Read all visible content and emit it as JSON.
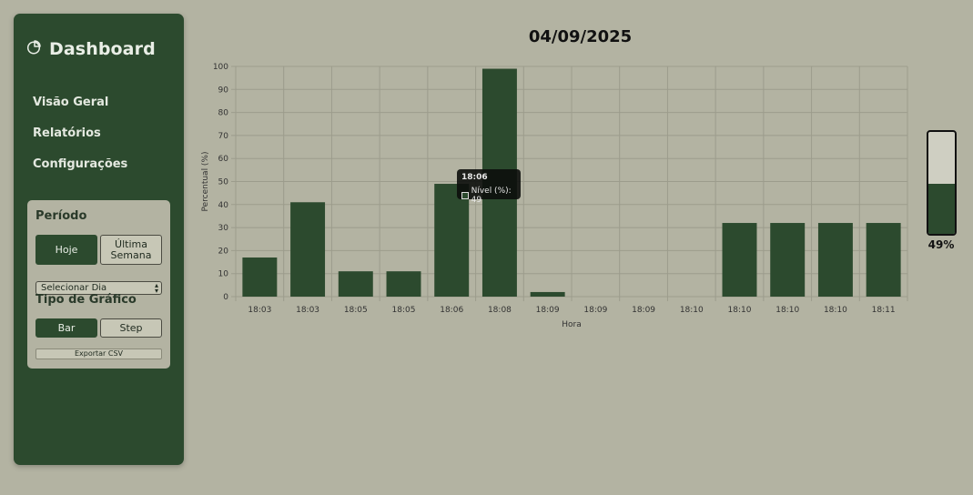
{
  "sidebar": {
    "brand": {
      "icon": "pie-chart-icon",
      "title": "Dashboard"
    },
    "nav": [
      {
        "label": "Visão Geral"
      },
      {
        "label": "Relatórios"
      },
      {
        "label": "Configurações"
      }
    ],
    "panel": {
      "period_title": "Período",
      "period_buttons": [
        {
          "label": "Hoje",
          "active": true
        },
        {
          "label": "Última Semana",
          "active": false
        }
      ],
      "day_select": {
        "value": "Selecionar Dia"
      },
      "chart_type_title": "Tipo de Gráfico",
      "chart_type_buttons": [
        {
          "label": "Bar",
          "active": true
        },
        {
          "label": "Step",
          "active": false
        }
      ],
      "export_label": "Exportar CSV"
    }
  },
  "main": {
    "date_title": "04/09/2025",
    "tooltip": {
      "title": "18:06",
      "series_label": "Nível (%): 49"
    },
    "gauge": {
      "value_pct": 49,
      "label": "49%"
    }
  },
  "colors": {
    "accent": "#2c4a2e",
    "background": "#b3b3a2",
    "panel": "#b3b3a2"
  },
  "chart_data": {
    "type": "bar",
    "categories": [
      "18:03",
      "18:03",
      "18:05",
      "18:05",
      "18:06",
      "18:08",
      "18:09",
      "18:09",
      "18:09",
      "18:10",
      "18:10",
      "18:10",
      "18:10",
      "18:11"
    ],
    "series": [
      {
        "name": "Nível (%)",
        "values": [
          17,
          41,
          11,
          11,
          49,
          99,
          2,
          0,
          0,
          0,
          32,
          32,
          32,
          32
        ]
      }
    ],
    "xlabel": "Hora",
    "ylabel": "Percentual (%)",
    "ylim": [
      0,
      100
    ],
    "yticks": [
      0,
      10,
      20,
      30,
      40,
      50,
      60,
      70,
      80,
      90,
      100
    ],
    "grid": true
  }
}
